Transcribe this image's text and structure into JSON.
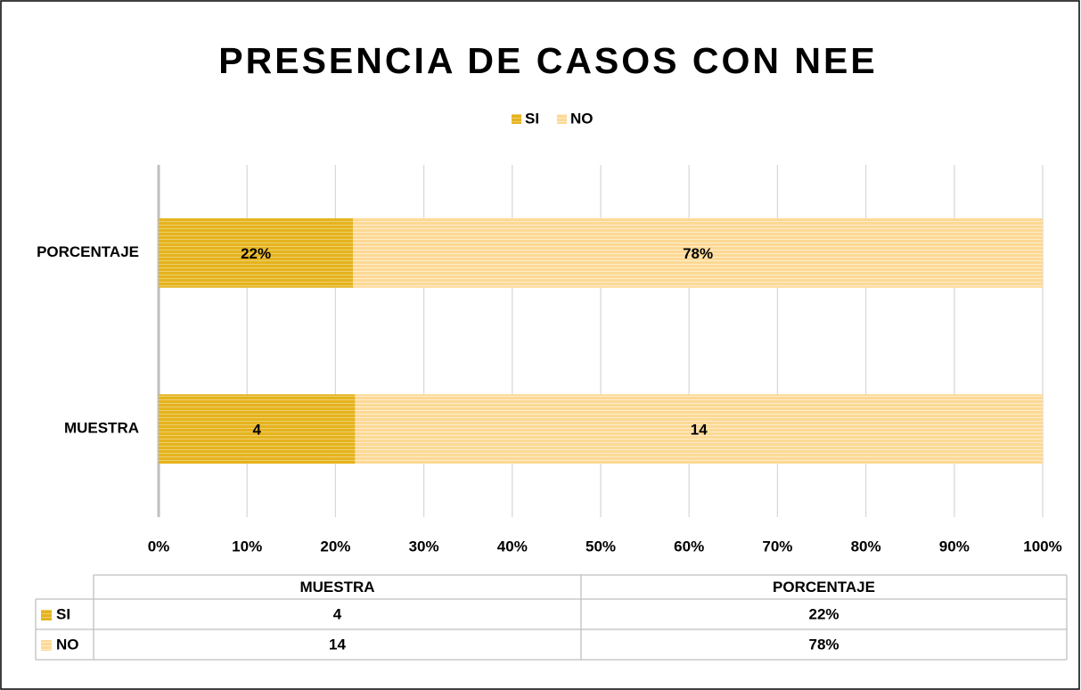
{
  "chart_data": {
    "type": "bar",
    "orientation": "horizontal",
    "stacking": "percent",
    "title": "PRESENCIA DE CASOS CON NEE",
    "categories": [
      "MUESTRA",
      "PORCENTAJE"
    ],
    "series": [
      {
        "name": "SI",
        "color": "#e5b31e",
        "values": [
          4,
          22
        ],
        "value_labels": [
          "4",
          "22%"
        ]
      },
      {
        "name": "NO",
        "color": "#fdd995",
        "values": [
          14,
          78
        ],
        "value_labels": [
          "14",
          "78%"
        ]
      }
    ],
    "xlim": [
      0,
      100
    ],
    "xticks": [
      {
        "value": 0,
        "label": "0%"
      },
      {
        "value": 10,
        "label": "10%"
      },
      {
        "value": 20,
        "label": "20%"
      },
      {
        "value": 30,
        "label": "30%"
      },
      {
        "value": 40,
        "label": "40%"
      },
      {
        "value": 50,
        "label": "50%"
      },
      {
        "value": 60,
        "label": "60%"
      },
      {
        "value": 70,
        "label": "70%"
      },
      {
        "value": 80,
        "label": "80%"
      },
      {
        "value": 90,
        "label": "90%"
      },
      {
        "value": 100,
        "label": "100%"
      }
    ],
    "grid": true,
    "legend": "top",
    "data_table": true
  }
}
